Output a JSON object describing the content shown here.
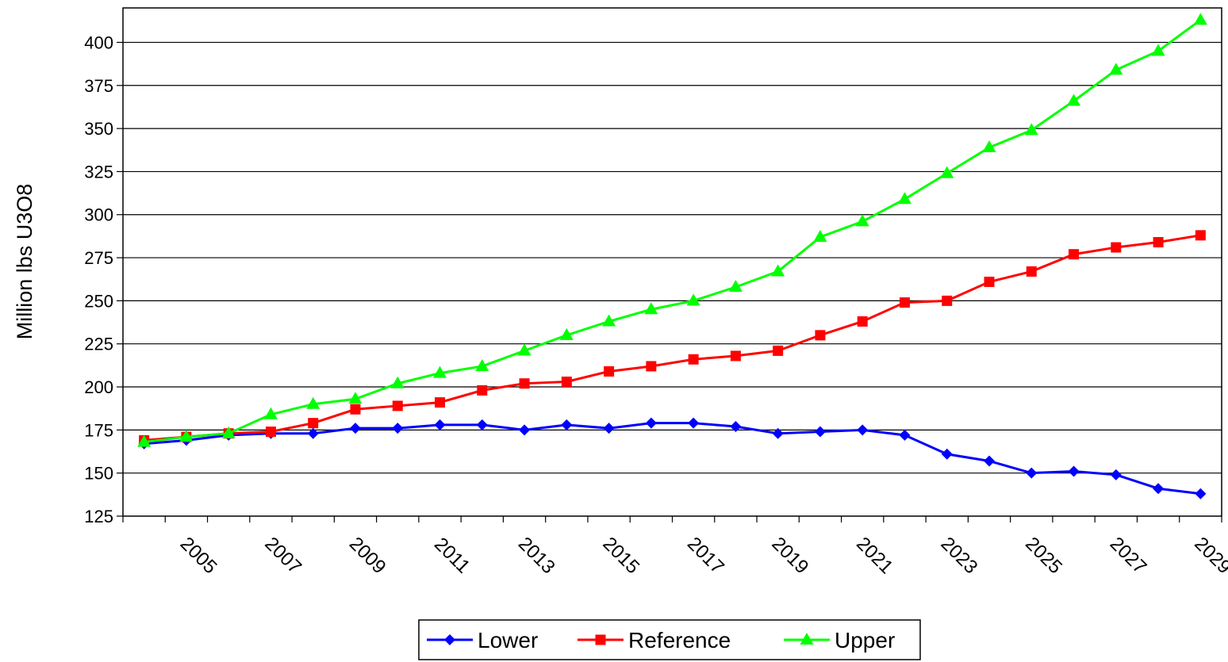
{
  "chart_data": {
    "type": "line",
    "ylabel": "Million lbs U3O8",
    "ylim": [
      125,
      420
    ],
    "yticks": [
      125,
      150,
      175,
      200,
      225,
      250,
      275,
      300,
      325,
      350,
      375,
      400
    ],
    "x": [
      2004,
      2005,
      2006,
      2007,
      2008,
      2009,
      2010,
      2011,
      2012,
      2013,
      2014,
      2015,
      2016,
      2017,
      2018,
      2019,
      2020,
      2021,
      2022,
      2023,
      2024,
      2025,
      2026,
      2027,
      2028,
      2029
    ],
    "xtick_labels": [
      "2005",
      "2007",
      "2009",
      "2011",
      "2013",
      "2015",
      "2017",
      "2019",
      "2021",
      "2023",
      "2025",
      "2027",
      "2029"
    ],
    "grid": "horizontal",
    "legend_position": "bottom",
    "series": [
      {
        "name": "Lower",
        "color": "#0000ff",
        "marker": "diamond",
        "values": [
          167,
          169,
          172,
          173,
          173,
          176,
          176,
          178,
          178,
          175,
          178,
          176,
          179,
          179,
          177,
          173,
          174,
          175,
          172,
          161,
          157,
          150,
          151,
          149,
          141,
          138
        ]
      },
      {
        "name": "Reference",
        "color": "#ff0000",
        "marker": "square",
        "values": [
          169,
          171,
          173,
          174,
          179,
          187,
          189,
          191,
          198,
          202,
          203,
          209,
          212,
          216,
          218,
          221,
          230,
          238,
          249,
          250,
          261,
          267,
          277,
          281,
          284,
          288
        ]
      },
      {
        "name": "Upper",
        "color": "#00ff00",
        "marker": "triangle",
        "values": [
          168,
          171,
          173,
          184,
          190,
          193,
          202,
          208,
          212,
          221,
          230,
          238,
          245,
          250,
          258,
          267,
          287,
          296,
          309,
          324,
          339,
          349,
          366,
          384,
          395,
          413
        ]
      }
    ]
  }
}
